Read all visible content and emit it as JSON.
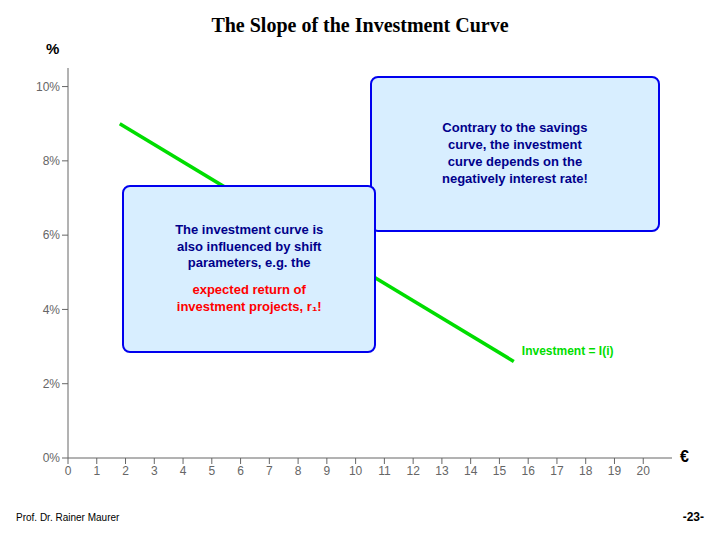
{
  "chart_data": {
    "type": "line",
    "title": "The Slope of the Investment Curve",
    "x": [
      1.8,
      15.5
    ],
    "values": [
      9.0,
      2.6
    ],
    "color": "#00dd00",
    "xlabel": "€",
    "ylabel": "%",
    "xlim": [
      0,
      21
    ],
    "ylim": [
      0,
      10.5
    ],
    "xticks": [
      0,
      1,
      2,
      3,
      4,
      5,
      6,
      7,
      8,
      9,
      10,
      11,
      12,
      13,
      14,
      15,
      16,
      17,
      18,
      19,
      20
    ],
    "yticks": [
      {
        "value": 0,
        "label": "0%"
      },
      {
        "value": 2,
        "label": "2%"
      },
      {
        "value": 4,
        "label": "4%"
      },
      {
        "value": 6,
        "label": "6%"
      },
      {
        "value": 8,
        "label": "8%"
      },
      {
        "value": 10,
        "label": "10%"
      }
    ],
    "grid": false,
    "annotations": [
      {
        "text": "Investment = I(i)",
        "color": "#00dd00"
      },
      {
        "text": "Contrary to the savings\ncurve, the investment\ncurve depends on the\nnegatively interest rate!",
        "color": "#00008B"
      },
      {
        "text": "The investment curve is\nalso influenced by shift\nparameters, e.g. the",
        "color": "#00008B"
      },
      {
        "text": "expected return of\ninvestment projects, r₁!",
        "color": "red"
      },
      {
        "text": "-23-",
        "color": "black"
      },
      {
        "text": "Prof. Dr. Rainer Maurer",
        "color": "black"
      }
    ]
  }
}
